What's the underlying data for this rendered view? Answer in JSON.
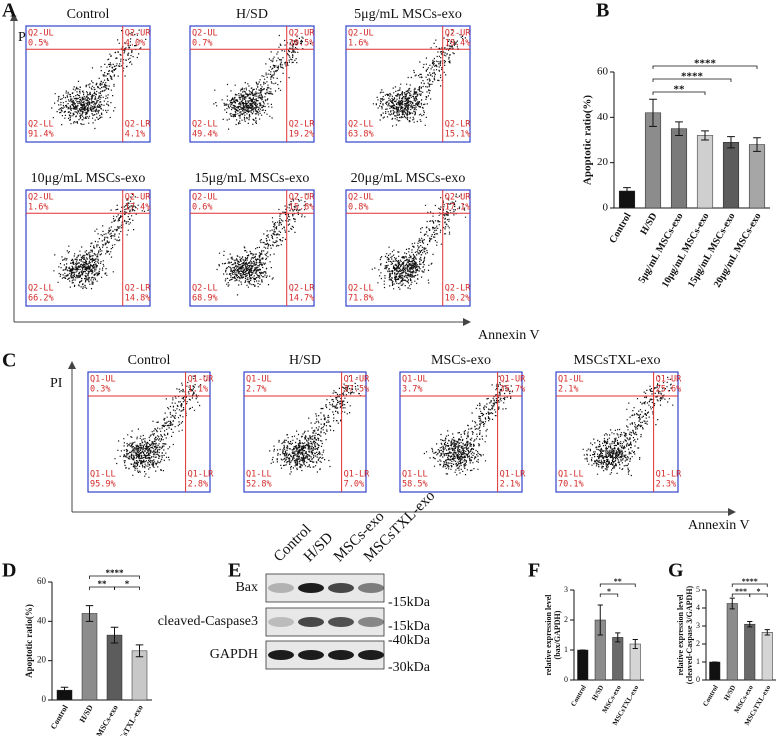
{
  "panel_labels": [
    "A",
    "B",
    "C",
    "D",
    "E",
    "F",
    "G"
  ],
  "flow_a": {
    "y_axis": "PI",
    "x_axis": "Annexin V",
    "plots": [
      {
        "title": "Control",
        "quadrants": [
          [
            "Q2-UL",
            "0.5%"
          ],
          [
            "Q2-UR",
            "4.0%"
          ],
          [
            "Q2-LL",
            "91.4%"
          ],
          [
            "Q2-LR",
            "4.1%"
          ]
        ]
      },
      {
        "title": "H/SD",
        "quadrants": [
          [
            "Q2-UL",
            "0.7%"
          ],
          [
            "Q2-UR",
            "30.5%"
          ],
          [
            "Q2-LL",
            "49.4%"
          ],
          [
            "Q2-LR",
            "19.2%"
          ]
        ]
      },
      {
        "title": "5μg/mL MSCs-exo",
        "quadrants": [
          [
            "Q2-UL",
            "1.6%"
          ],
          [
            "Q2-UR",
            "19.4%"
          ],
          [
            "Q2-LL",
            "63.8%"
          ],
          [
            "Q2-LR",
            "15.1%"
          ]
        ]
      },
      {
        "title": "10μg/mL MSCs-exo",
        "quadrants": [
          [
            "Q2-UL",
            "1.6%"
          ],
          [
            "Q2-UR",
            "17.4%"
          ],
          [
            "Q2-LL",
            "66.2%"
          ],
          [
            "Q2-LR",
            "14.8%"
          ]
        ]
      },
      {
        "title": "15μg/mL MSCs-exo",
        "quadrants": [
          [
            "Q2-UL",
            "0.6%"
          ],
          [
            "Q2-UR",
            "15.8%"
          ],
          [
            "Q2-LL",
            "68.9%"
          ],
          [
            "Q2-LR",
            "14.7%"
          ]
        ]
      },
      {
        "title": "20μg/mL MSCs-exo",
        "quadrants": [
          [
            "Q2-UL",
            "0.8%"
          ],
          [
            "Q2-UR",
            "17.1%"
          ],
          [
            "Q2-LL",
            "71.8%"
          ],
          [
            "Q2-LR",
            "10.2%"
          ]
        ]
      }
    ]
  },
  "flow_c": {
    "y_axis": "PI",
    "x_axis": "Annexin V",
    "plots": [
      {
        "title": "Control",
        "quadrants": [
          [
            "Q1-UL",
            "0.3%"
          ],
          [
            "Q1-UR",
            "1.1%"
          ],
          [
            "Q1-LL",
            "95.9%"
          ],
          [
            "Q1-LR",
            "2.8%"
          ]
        ]
      },
      {
        "title": "H/SD",
        "quadrants": [
          [
            "Q1-UL",
            "2.7%"
          ],
          [
            "Q1-UR",
            "37.5%"
          ],
          [
            "Q1-LL",
            "52.8%"
          ],
          [
            "Q1-LR",
            "7.0%"
          ]
        ]
      },
      {
        "title": "MSCs-exo",
        "quadrants": [
          [
            "Q1-UL",
            "3.7%"
          ],
          [
            "Q1-UR",
            "35.7%"
          ],
          [
            "Q1-LL",
            "58.5%"
          ],
          [
            "Q1-LR",
            "2.1%"
          ]
        ]
      },
      {
        "title": "MSCsTXL-exo",
        "quadrants": [
          [
            "Q1-UL",
            "2.1%"
          ],
          [
            "Q1-UR",
            "25.6%"
          ],
          [
            "Q1-LL",
            "70.1%"
          ],
          [
            "Q1-LR",
            "2.3%"
          ]
        ]
      }
    ]
  },
  "blot": {
    "columns": [
      "Control",
      "H/SD",
      "MSCs-exo",
      "MSCsTXL-exo"
    ],
    "rows": [
      "Bax",
      "cleaved-Caspase3",
      "GAPDH"
    ],
    "markers": [
      "-15kDa",
      "-15kDa",
      "-40kDa",
      "-30kDa"
    ]
  },
  "chart_data": [
    {
      "type": "bar",
      "ylabel": [
        "Apoptotic ratio(%)"
      ],
      "categories": [
        "Control",
        "H/SD",
        "5μg/mL MSCs-exo",
        "10μg/mL MSCs-exo",
        "15μg/mL MSCs-exo",
        "20μg/mL MSCs-exo"
      ],
      "values": [
        7.5,
        42,
        35,
        32,
        29,
        28
      ],
      "errors": [
        1.5,
        6,
        3,
        2,
        2.5,
        3
      ],
      "colors": [
        "#111111",
        "#8c8c8c",
        "#7a7a7a",
        "#cfcfcf",
        "#5c5c5c",
        "#a6a6a6"
      ],
      "ylim": [
        0,
        60
      ],
      "yticks": [
        0,
        20,
        40,
        60
      ],
      "comparisons": [
        {
          "label": "****",
          "between": [
            "H/SD",
            "20μg/mL MSCs-exo"
          ]
        },
        {
          "label": "****",
          "between": [
            "H/SD",
            "15μg/mL MSCs-exo"
          ]
        },
        {
          "label": "**",
          "between": [
            "H/SD",
            "10μg/mL MSCs-exo"
          ]
        }
      ]
    },
    {
      "type": "bar",
      "ylabel": [
        "Apoptotic ratio(%)"
      ],
      "categories": [
        "Control",
        "H/SD",
        "MSCs-exo",
        "MSCsTXL-exo"
      ],
      "values": [
        5,
        44,
        33,
        25
      ],
      "errors": [
        1.5,
        4,
        4,
        3
      ],
      "colors": [
        "#111111",
        "#8c8c8c",
        "#5c5c5c",
        "#c8c8c8"
      ],
      "ylim": [
        0,
        60
      ],
      "yticks": [
        0,
        20,
        40,
        60
      ],
      "comparisons": [
        {
          "label": "****",
          "between": [
            "H/SD",
            "MSCsTXL-exo"
          ]
        },
        {
          "label": "**",
          "between": [
            "H/SD",
            "MSCs-exo"
          ]
        },
        {
          "label": "*",
          "between": [
            "MSCs-exo",
            "MSCsTXL-exo"
          ]
        }
      ]
    },
    {
      "type": "bar",
      "ylabel": [
        "relative expression level",
        "(bax/GAPDH)"
      ],
      "categories": [
        "Control",
        "H/SD",
        "MSCs-exo",
        "MSCsTXL-exo"
      ],
      "values": [
        1,
        2.0,
        1.42,
        1.2
      ],
      "errors": [
        0,
        0.5,
        0.15,
        0.15
      ],
      "colors": [
        "#111111",
        "#8c8c8c",
        "#6a6a6a",
        "#d5d5d5"
      ],
      "ylim": [
        0,
        3
      ],
      "yticks": [
        0,
        1,
        2,
        3
      ],
      "comparisons": [
        {
          "label": "**",
          "between": [
            "H/SD",
            "MSCsTXL-exo"
          ]
        },
        {
          "label": "*",
          "between": [
            "H/SD",
            "MSCs-exo"
          ]
        }
      ]
    },
    {
      "type": "bar",
      "ylabel": [
        "relative expression level",
        "(cleaved-Caspase 3/GAPDH)"
      ],
      "categories": [
        "Control",
        "H/SD",
        "MSCs-exo",
        "MSCsTXL-exo"
      ],
      "values": [
        1,
        4.25,
        3.1,
        2.65
      ],
      "errors": [
        0,
        0.3,
        0.15,
        0.15
      ],
      "colors": [
        "#111111",
        "#8c8c8c",
        "#6a6a6a",
        "#d5d5d5"
      ],
      "ylim": [
        0,
        5
      ],
      "yticks": [
        0,
        1,
        2,
        3,
        4,
        5
      ],
      "comparisons": [
        {
          "label": "****",
          "between": [
            "H/SD",
            "MSCsTXL-exo"
          ]
        },
        {
          "label": "***",
          "between": [
            "H/SD",
            "MSCs-exo"
          ]
        },
        {
          "label": "*",
          "between": [
            "MSCs-exo",
            "MSCsTXL-exo"
          ]
        }
      ]
    }
  ]
}
